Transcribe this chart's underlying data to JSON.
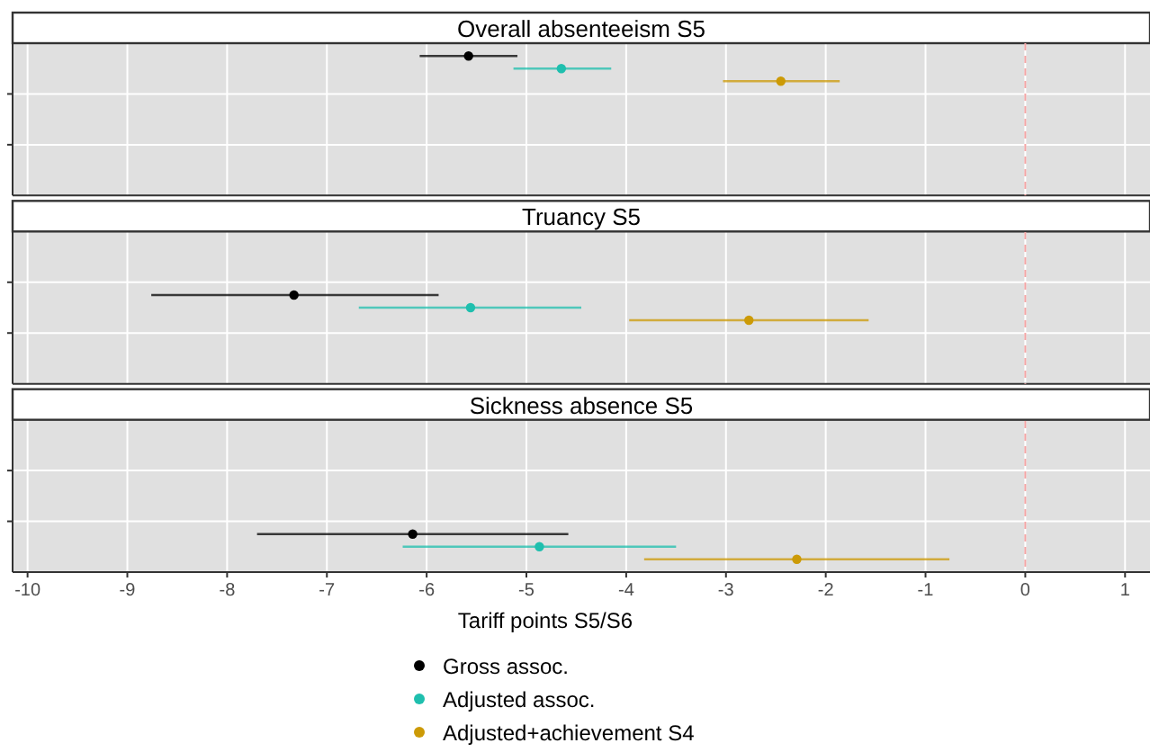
{
  "chart_data": {
    "type": "scatter",
    "orientation": "horizontal",
    "xlabel": "Tariff points S5/S6",
    "categories": [
      "Overall absenteeism S5",
      "Truancy S5",
      "Sickness absence S5"
    ],
    "xlim": [
      -10.15,
      1.25
    ],
    "xticks": [
      -10,
      -9,
      -8,
      -7,
      -6,
      -5,
      -4,
      -3,
      -2,
      -1,
      0,
      1
    ],
    "grid": true,
    "marker": "circle",
    "legend": "bottom",
    "ref_lines": [
      {
        "axis": "x",
        "value": 0,
        "color": "#f4a6a6",
        "line_style": "dashed"
      }
    ],
    "series": [
      {
        "name": "Gross assoc.",
        "color": "#000000",
        "values": [
          -5.58,
          -7.33,
          -6.14
        ],
        "errors": [
          [
            -6.07,
            -5.09
          ],
          [
            -8.76,
            -5.88
          ],
          [
            -7.7,
            -4.58
          ]
        ]
      },
      {
        "name": "Adjusted assoc.",
        "color": "#1fbfae",
        "values": [
          -4.65,
          -5.56,
          -4.87
        ],
        "errors": [
          [
            -5.13,
            -4.15
          ],
          [
            -6.68,
            -4.45
          ],
          [
            -6.24,
            -3.5
          ]
        ]
      },
      {
        "name": "Adjusted+achievement S4",
        "color": "#cc9a06",
        "values": [
          -2.45,
          -2.77,
          -2.29
        ],
        "errors": [
          [
            -3.03,
            -1.86
          ],
          [
            -3.97,
            -1.57
          ],
          [
            -3.82,
            -0.76
          ]
        ]
      }
    ]
  }
}
